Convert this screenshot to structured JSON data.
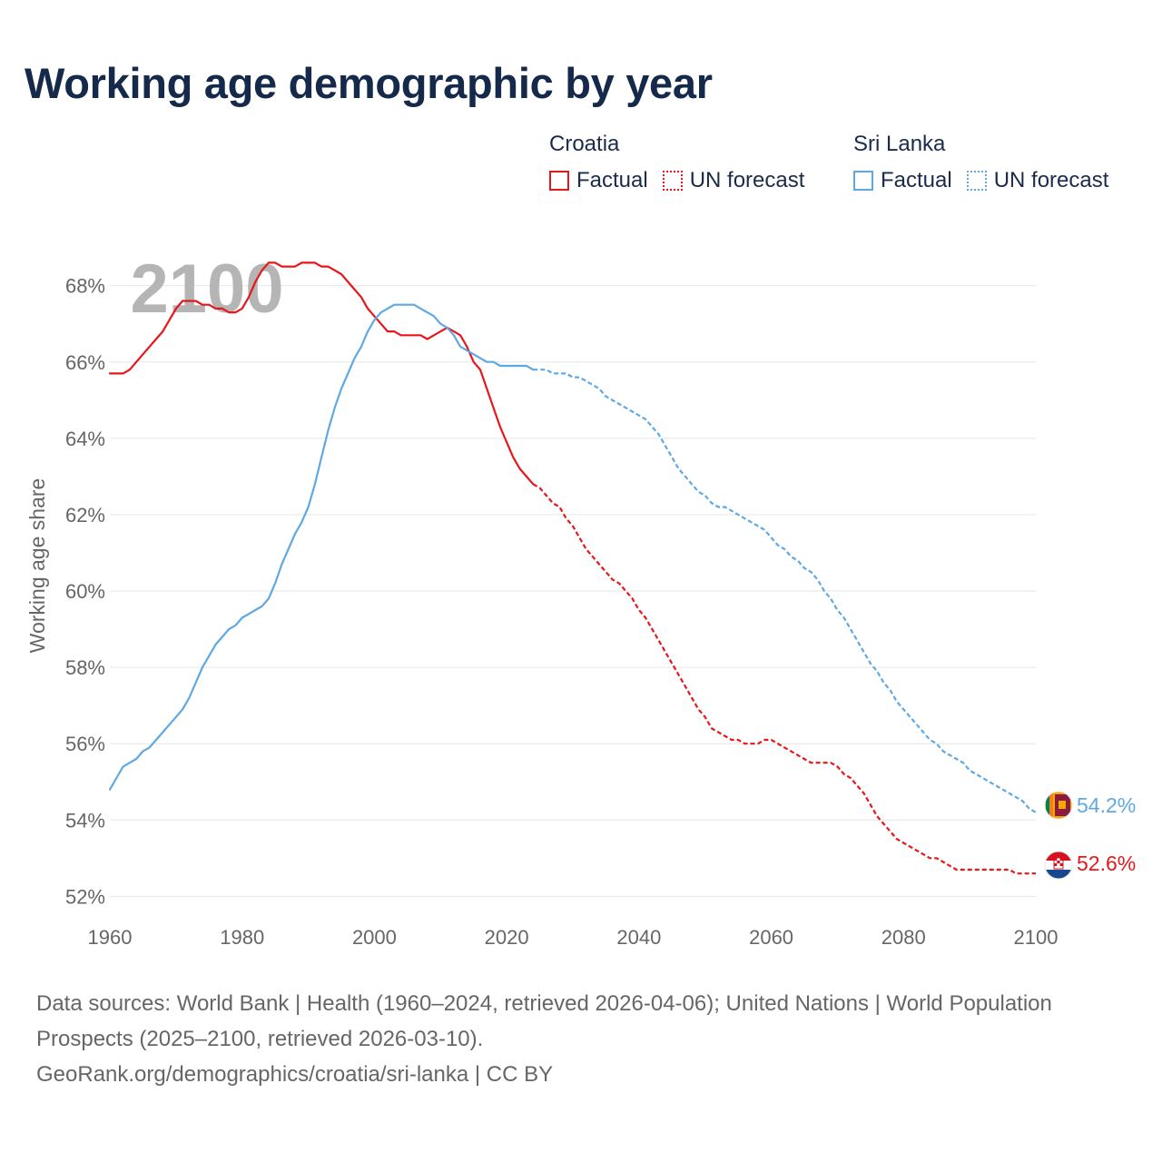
{
  "title": "Working age demographic by year",
  "legend": {
    "groups": [
      {
        "country": "Croatia",
        "factual_label": "Factual",
        "forecast_label": "UN forecast",
        "color": "#e8161b"
      },
      {
        "country": "Sri Lanka",
        "factual_label": "Factual",
        "forecast_label": "UN forecast",
        "color": "#5fa8e3"
      }
    ]
  },
  "watermark_year": "2100",
  "footer": {
    "sources": "Data sources: World Bank | Health (1960–2024, retrieved 2026-04-06); United Nations | World Population Prospects (2025–2100, retrieved 2026-03-10).",
    "credit": "GeoRank.org/demographics/croatia/sri-lanka | CC BY"
  },
  "end_labels": {
    "croatia": "52.6%",
    "sri_lanka": "54.2%"
  },
  "icons": {
    "croatia": "croatia-flag-icon",
    "sri_lanka": "sri-lanka-flag-icon"
  },
  "chart_data": {
    "type": "line",
    "title": "Working age demographic by year",
    "xlabel": "",
    "ylabel": "Working age share",
    "xlim": [
      1960,
      2100
    ],
    "ylim": [
      51.7,
      69.3
    ],
    "x_ticks": [
      1960,
      1980,
      2000,
      2020,
      2040,
      2060,
      2080,
      2100
    ],
    "x_tick_labels": [
      "1960",
      "1980",
      "2000",
      "2020",
      "2040",
      "2060",
      "2080",
      "2100"
    ],
    "y_ticks": [
      52,
      54,
      56,
      58,
      60,
      62,
      64,
      66,
      68
    ],
    "y_tick_labels": [
      "52%",
      "54%",
      "56%",
      "58%",
      "60%",
      "62%",
      "64%",
      "66%",
      "68%"
    ],
    "grid": true,
    "legend_position": "top-right",
    "series": [
      {
        "name": "Croatia",
        "color": "#e8161b",
        "factual": {
          "label": "Factual",
          "x": [
            1960,
            1962,
            1963,
            1965,
            1967,
            1968,
            1970,
            1971,
            1973,
            1974,
            1975,
            1976,
            1977,
            1978,
            1979,
            1980,
            1981,
            1982,
            1983,
            1984,
            1985,
            1986,
            1987,
            1988,
            1989,
            1990,
            1991,
            1992,
            1993,
            1995,
            1997,
            1998,
            1999,
            2000,
            2001,
            2002,
            2003,
            2004,
            2005,
            2006,
            2007,
            2008,
            2009,
            2010,
            2011,
            2012,
            2013,
            2014,
            2015,
            2016,
            2017,
            2018,
            2019,
            2020,
            2021,
            2022,
            2023,
            2024
          ],
          "y": [
            65.7,
            65.7,
            65.8,
            66.2,
            66.6,
            66.8,
            67.4,
            67.6,
            67.6,
            67.5,
            67.5,
            67.4,
            67.4,
            67.3,
            67.3,
            67.4,
            67.7,
            68.1,
            68.4,
            68.6,
            68.6,
            68.5,
            68.5,
            68.5,
            68.6,
            68.6,
            68.6,
            68.5,
            68.5,
            68.3,
            67.9,
            67.7,
            67.4,
            67.2,
            67.0,
            66.8,
            66.8,
            66.7,
            66.7,
            66.7,
            66.7,
            66.6,
            66.7,
            66.8,
            66.9,
            66.8,
            66.7,
            66.4,
            66.0,
            65.8,
            65.3,
            64.8,
            64.3,
            63.9,
            63.5,
            63.2,
            63.0,
            62.8
          ]
        },
        "forecast": {
          "label": "UN forecast",
          "x": [
            2024,
            2025,
            2026,
            2027,
            2028,
            2029,
            2030,
            2031,
            2032,
            2033,
            2034,
            2035,
            2036,
            2037,
            2038,
            2039,
            2040,
            2041,
            2042,
            2043,
            2044,
            2045,
            2046,
            2047,
            2048,
            2049,
            2050,
            2051,
            2052,
            2053,
            2054,
            2055,
            2056,
            2057,
            2058,
            2059,
            2060,
            2061,
            2062,
            2063,
            2064,
            2065,
            2066,
            2067,
            2068,
            2069,
            2070,
            2071,
            2072,
            2073,
            2074,
            2075,
            2076,
            2077,
            2078,
            2079,
            2080,
            2081,
            2082,
            2083,
            2084,
            2085,
            2086,
            2087,
            2088,
            2089,
            2090,
            2095,
            2096,
            2097,
            2100
          ],
          "y": [
            62.8,
            62.7,
            62.5,
            62.3,
            62.2,
            61.9,
            61.7,
            61.4,
            61.1,
            60.9,
            60.7,
            60.5,
            60.3,
            60.2,
            60.0,
            59.8,
            59.5,
            59.3,
            59.0,
            58.7,
            58.4,
            58.1,
            57.8,
            57.5,
            57.2,
            56.9,
            56.7,
            56.4,
            56.3,
            56.2,
            56.1,
            56.1,
            56.0,
            56.0,
            56.0,
            56.1,
            56.1,
            56.0,
            55.9,
            55.8,
            55.7,
            55.6,
            55.5,
            55.5,
            55.5,
            55.5,
            55.4,
            55.2,
            55.1,
            54.9,
            54.7,
            54.4,
            54.1,
            53.9,
            53.7,
            53.5,
            53.4,
            53.3,
            53.2,
            53.1,
            53.0,
            53.0,
            52.9,
            52.8,
            52.7,
            52.7,
            52.7,
            52.7,
            52.7,
            52.6,
            52.6
          ]
        }
      },
      {
        "name": "Sri Lanka",
        "color": "#5fa8e3",
        "factual": {
          "label": "Factual",
          "x": [
            1960,
            1961,
            1962,
            1963,
            1964,
            1965,
            1966,
            1967,
            1968,
            1969,
            1970,
            1971,
            1972,
            1973,
            1974,
            1975,
            1976,
            1977,
            1978,
            1979,
            1980,
            1981,
            1982,
            1983,
            1984,
            1985,
            1986,
            1987,
            1988,
            1989,
            1990,
            1991,
            1992,
            1993,
            1994,
            1995,
            1996,
            1997,
            1998,
            1999,
            2000,
            2001,
            2002,
            2003,
            2004,
            2005,
            2006,
            2007,
            2008,
            2009,
            2010,
            2011,
            2012,
            2013,
            2014,
            2015,
            2016,
            2017,
            2018,
            2019,
            2020,
            2021,
            2022,
            2023,
            2024
          ],
          "y": [
            54.8,
            55.1,
            55.4,
            55.5,
            55.6,
            55.8,
            55.9,
            56.1,
            56.3,
            56.5,
            56.7,
            56.9,
            57.2,
            57.6,
            58.0,
            58.3,
            58.6,
            58.8,
            59.0,
            59.1,
            59.3,
            59.4,
            59.5,
            59.6,
            59.8,
            60.2,
            60.7,
            61.1,
            61.5,
            61.8,
            62.2,
            62.8,
            63.5,
            64.2,
            64.8,
            65.3,
            65.7,
            66.1,
            66.4,
            66.8,
            67.1,
            67.3,
            67.4,
            67.5,
            67.5,
            67.5,
            67.5,
            67.4,
            67.3,
            67.2,
            67.0,
            66.9,
            66.7,
            66.4,
            66.3,
            66.2,
            66.1,
            66.0,
            66.0,
            65.9,
            65.9,
            65.9,
            65.9,
            65.9,
            65.8
          ]
        },
        "forecast": {
          "label": "UN forecast",
          "x": [
            2024,
            2025,
            2026,
            2027,
            2028,
            2029,
            2030,
            2031,
            2032,
            2033,
            2034,
            2035,
            2036,
            2037,
            2038,
            2039,
            2040,
            2041,
            2042,
            2043,
            2044,
            2045,
            2046,
            2047,
            2048,
            2049,
            2050,
            2051,
            2052,
            2053,
            2054,
            2055,
            2056,
            2057,
            2058,
            2059,
            2060,
            2061,
            2062,
            2063,
            2064,
            2065,
            2066,
            2067,
            2068,
            2069,
            2070,
            2071,
            2072,
            2073,
            2074,
            2075,
            2076,
            2077,
            2078,
            2079,
            2080,
            2081,
            2082,
            2083,
            2084,
            2085,
            2086,
            2087,
            2088,
            2089,
            2090,
            2091,
            2092,
            2093,
            2094,
            2095,
            2096,
            2097,
            2098,
            2099,
            2100
          ],
          "y": [
            65.8,
            65.8,
            65.8,
            65.7,
            65.7,
            65.7,
            65.6,
            65.6,
            65.5,
            65.4,
            65.3,
            65.1,
            65.0,
            64.9,
            64.8,
            64.7,
            64.6,
            64.5,
            64.3,
            64.1,
            63.8,
            63.5,
            63.2,
            63.0,
            62.8,
            62.6,
            62.5,
            62.3,
            62.2,
            62.2,
            62.1,
            62.0,
            61.9,
            61.8,
            61.7,
            61.6,
            61.4,
            61.2,
            61.1,
            60.9,
            60.8,
            60.6,
            60.5,
            60.3,
            60.0,
            59.8,
            59.5,
            59.3,
            59.0,
            58.7,
            58.4,
            58.1,
            57.9,
            57.6,
            57.4,
            57.1,
            56.9,
            56.7,
            56.5,
            56.3,
            56.1,
            56.0,
            55.8,
            55.7,
            55.6,
            55.5,
            55.3,
            55.2,
            55.1,
            55.0,
            54.9,
            54.8,
            54.7,
            54.6,
            54.5,
            54.3,
            54.2
          ]
        }
      }
    ]
  }
}
